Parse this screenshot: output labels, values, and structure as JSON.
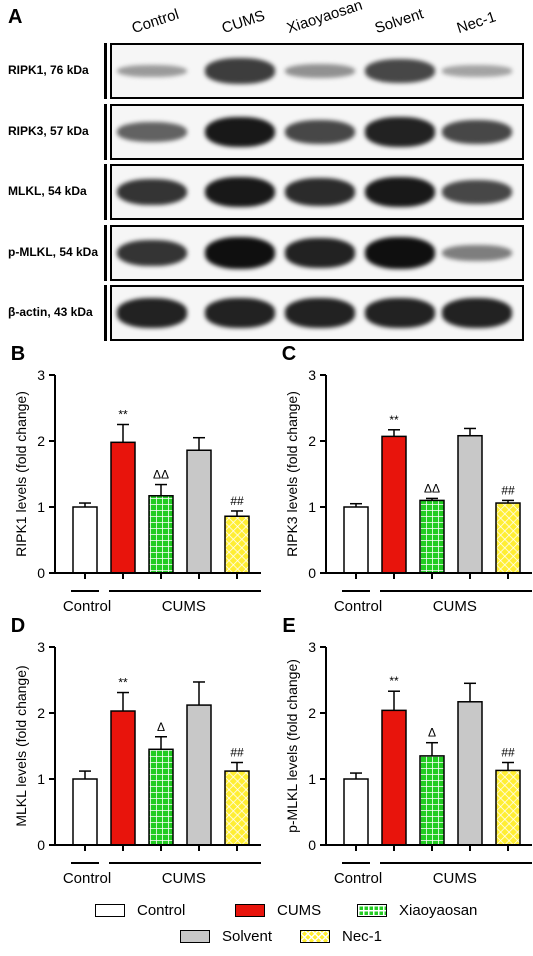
{
  "western_blot": {
    "panel_letter": "A",
    "lanes": [
      "Control",
      "CUMS",
      "Xiaoyaosan",
      "Solvent",
      "Nec-1"
    ],
    "proteins": [
      {
        "label": "RIPK1, 76 kDa",
        "intensity": [
          0.25,
          0.75,
          0.3,
          0.7,
          0.2
        ]
      },
      {
        "label": "RIPK3, 57 kDa",
        "intensity": [
          0.55,
          0.95,
          0.7,
          0.9,
          0.7
        ]
      },
      {
        "label": "MLKL, 54 kDa",
        "intensity": [
          0.8,
          0.95,
          0.85,
          0.95,
          0.7
        ]
      },
      {
        "label": "p-MLKL, 54 kDa",
        "intensity": [
          0.8,
          1.0,
          0.9,
          1.0,
          0.4
        ]
      },
      {
        "label": "β-actin, 43 kDa",
        "intensity": [
          0.9,
          0.9,
          0.9,
          0.9,
          0.9
        ]
      }
    ]
  },
  "colors": {
    "control": "#ffffff",
    "cums": "#e8140c",
    "xiaoyaosan": "#22cc22",
    "solvent": "#c8c8c8",
    "nec1": "#ffee33"
  },
  "chart_data": [
    {
      "panel": "B",
      "type": "bar",
      "ylabel": "RIPK1 levels (fold change)",
      "ylim": [
        0,
        3
      ],
      "yticks": [
        0,
        1,
        2,
        3
      ],
      "categories": [
        "Control",
        "CUMS",
        "Xiaoyaosan",
        "Solvent",
        "Nec-1"
      ],
      "values": [
        1.0,
        1.98,
        1.17,
        1.86,
        0.86
      ],
      "errors": [
        0.06,
        0.27,
        0.17,
        0.19,
        0.08
      ],
      "annotations": [
        "",
        "**",
        "ΔΔ",
        "",
        "##"
      ],
      "group_labels": [
        "Control",
        "CUMS"
      ]
    },
    {
      "panel": "C",
      "type": "bar",
      "ylabel": "RIPK3 levels (fold change)",
      "ylim": [
        0,
        3
      ],
      "yticks": [
        0,
        1,
        2,
        3
      ],
      "categories": [
        "Control",
        "CUMS",
        "Xiaoyaosan",
        "Solvent",
        "Nec-1"
      ],
      "values": [
        1.0,
        2.07,
        1.1,
        2.08,
        1.06
      ],
      "errors": [
        0.05,
        0.1,
        0.03,
        0.11,
        0.04
      ],
      "annotations": [
        "",
        "**",
        "ΔΔ",
        "",
        "##"
      ],
      "group_labels": [
        "Control",
        "CUMS"
      ]
    },
    {
      "panel": "D",
      "type": "bar",
      "ylabel": "MLKL levels (fold change)",
      "ylim": [
        0,
        3
      ],
      "yticks": [
        0,
        1,
        2,
        3
      ],
      "categories": [
        "Control",
        "CUMS",
        "Xiaoyaosan",
        "Solvent",
        "Nec-1"
      ],
      "values": [
        1.0,
        2.03,
        1.45,
        2.12,
        1.12
      ],
      "errors": [
        0.12,
        0.28,
        0.19,
        0.35,
        0.13
      ],
      "annotations": [
        "",
        "**",
        "Δ",
        "",
        "##"
      ],
      "group_labels": [
        "Control",
        "CUMS"
      ]
    },
    {
      "panel": "E",
      "type": "bar",
      "ylabel": "p-MLKL levels (fold change)",
      "ylim": [
        0,
        3
      ],
      "yticks": [
        0,
        1,
        2,
        3
      ],
      "categories": [
        "Control",
        "CUMS",
        "Xiaoyaosan",
        "Solvent",
        "Nec-1"
      ],
      "values": [
        1.0,
        2.04,
        1.35,
        2.17,
        1.13
      ],
      "errors": [
        0.09,
        0.29,
        0.2,
        0.28,
        0.12
      ],
      "annotations": [
        "",
        "**",
        "Δ",
        "",
        "##"
      ],
      "group_labels": [
        "Control",
        "CUMS"
      ]
    }
  ],
  "legend": [
    "Control",
    "CUMS",
    "Xiaoyaosan",
    "Solvent",
    "Nec-1"
  ]
}
